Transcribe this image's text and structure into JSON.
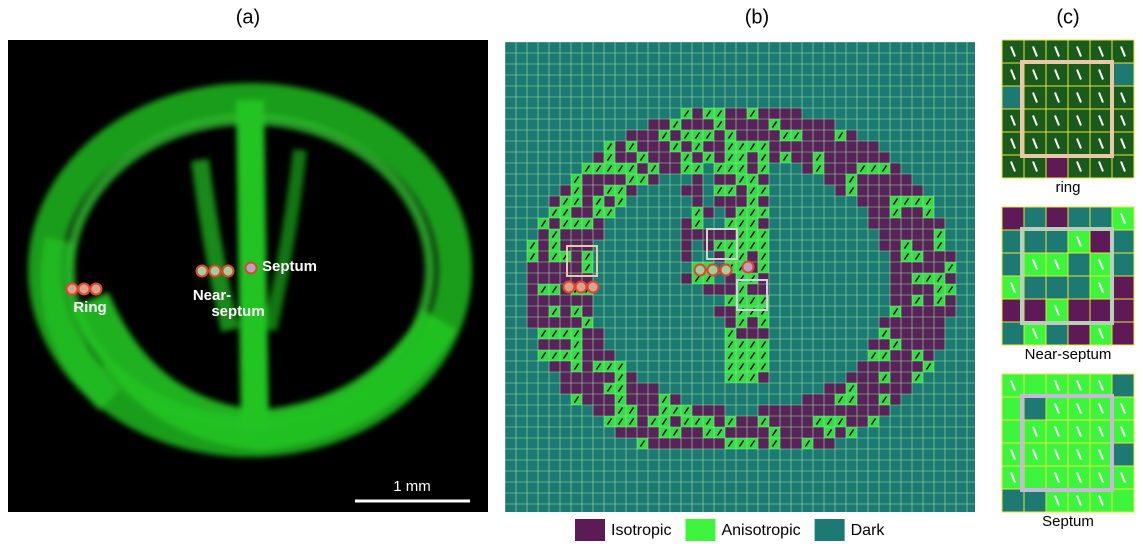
{
  "panels": {
    "a": "(a)",
    "b": "(b)",
    "c": "(c)"
  },
  "markers": {
    "ring": "Ring",
    "near_septum": [
      "Near-",
      "septum"
    ],
    "septum": "Septum"
  },
  "scale_bar": "1 mm",
  "legend": [
    {
      "name": "Isotropic",
      "color": "#5e1a56"
    },
    {
      "name": "Anisotropic",
      "color": "#3cf53c"
    },
    {
      "name": "Dark",
      "color": "#1c7a72"
    }
  ],
  "insets": [
    "ring",
    "Near-septum",
    "Septum"
  ]
}
